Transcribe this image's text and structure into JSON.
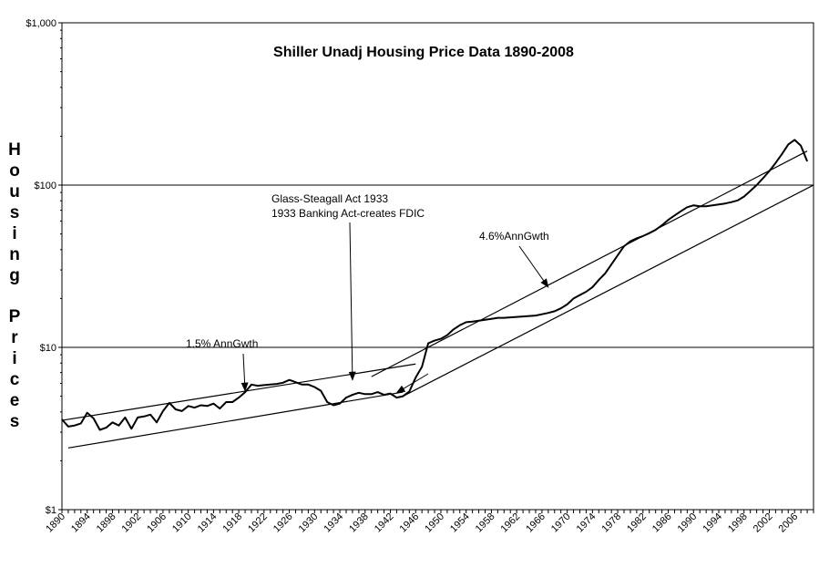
{
  "chart_data": {
    "type": "line",
    "title": "Shiller Unadj Housing Price Data 1890-2008",
    "ylabel": "Housing Prices",
    "xlabel": "",
    "yscale": "log",
    "ylim": [
      1,
      1000
    ],
    "xlim": [
      1890,
      2009
    ],
    "grid": "major horizontal at $10 and $100",
    "legend": "none",
    "y_ticks": [
      {
        "value": 1,
        "label": "$1"
      },
      {
        "value": 10,
        "label": "$10"
      },
      {
        "value": 100,
        "label": "$100"
      },
      {
        "value": 1000,
        "label": "$1,000"
      }
    ],
    "x_ticks": [
      {
        "value": 1890,
        "label": "1890"
      },
      {
        "value": 1894,
        "label": "1894"
      },
      {
        "value": 1898,
        "label": "1898"
      },
      {
        "value": 1902,
        "label": "1902"
      },
      {
        "value": 1906,
        "label": "1906"
      },
      {
        "value": 1910,
        "label": "1910"
      },
      {
        "value": 1914,
        "label": "1914"
      },
      {
        "value": 1918,
        "label": "1918"
      },
      {
        "value": 1922,
        "label": "1922"
      },
      {
        "value": 1926,
        "label": "1926"
      },
      {
        "value": 1930,
        "label": "1930"
      },
      {
        "value": 1934,
        "label": "1934"
      },
      {
        "value": 1938,
        "label": "1938"
      },
      {
        "value": 1942,
        "label": "1942"
      },
      {
        "value": 1946,
        "label": "1946"
      },
      {
        "value": 1950,
        "label": "1950"
      },
      {
        "value": 1954,
        "label": "1954"
      },
      {
        "value": 1958,
        "label": "1958"
      },
      {
        "value": 1962,
        "label": "1962"
      },
      {
        "value": 1966,
        "label": "1966"
      },
      {
        "value": 1970,
        "label": "1970"
      },
      {
        "value": 1974,
        "label": "1974"
      },
      {
        "value": 1978,
        "label": "1978"
      },
      {
        "value": 1982,
        "label": "1982"
      },
      {
        "value": 1986,
        "label": "1986"
      },
      {
        "value": 1990,
        "label": "1990"
      },
      {
        "value": 1994,
        "label": "1994"
      },
      {
        "value": 1998,
        "label": "1998"
      },
      {
        "value": 2002,
        "label": "2002"
      },
      {
        "value": 2006,
        "label": "2006"
      }
    ],
    "series": [
      {
        "x": [
          1890,
          1891,
          1892,
          1893,
          1894,
          1895,
          1896,
          1897,
          1898,
          1899,
          1900,
          1901,
          1902,
          1903,
          1904,
          1905,
          1906,
          1907,
          1908,
          1909,
          1910,
          1911,
          1912,
          1913,
          1914,
          1915,
          1916,
          1917,
          1918,
          1919,
          1920,
          1921,
          1922,
          1923,
          1924,
          1925,
          1926,
          1927,
          1928,
          1929,
          1930,
          1931,
          1932,
          1933,
          1934,
          1935,
          1936,
          1937,
          1938,
          1939,
          1940,
          1941,
          1942,
          1943,
          1944,
          1945,
          1946,
          1947,
          1948,
          1949,
          1950,
          1951,
          1952,
          1953,
          1954,
          1955,
          1956,
          1957,
          1958,
          1959,
          1960,
          1961,
          1962,
          1963,
          1964,
          1965,
          1966,
          1967,
          1968,
          1969,
          1970,
          1971,
          1972,
          1973,
          1974,
          1975,
          1976,
          1977,
          1978,
          1979,
          1980,
          1981,
          1982,
          1983,
          1984,
          1985,
          1986,
          1987,
          1988,
          1989,
          1990,
          1991,
          1992,
          1993,
          1994,
          1995,
          1996,
          1997,
          1998,
          1999,
          2000,
          2001,
          2002,
          2003,
          2004,
          2005,
          2006,
          2007,
          2008
        ],
        "y": [
          3.6,
          3.25,
          3.3,
          3.4,
          3.95,
          3.65,
          3.1,
          3.2,
          3.45,
          3.3,
          3.7,
          3.15,
          3.7,
          3.75,
          3.85,
          3.45,
          4.05,
          4.55,
          4.15,
          4.05,
          4.35,
          4.25,
          4.4,
          4.35,
          4.5,
          4.2,
          4.6,
          4.6,
          4.9,
          5.3,
          5.9,
          5.8,
          5.85,
          5.9,
          5.95,
          6.05,
          6.3,
          6.1,
          5.9,
          5.9,
          5.7,
          5.4,
          4.6,
          4.4,
          4.5,
          4.9,
          5.1,
          5.25,
          5.15,
          5.15,
          5.3,
          5.1,
          5.2,
          4.9,
          5.0,
          5.35,
          6.5,
          7.6,
          10.6,
          11.0,
          11.3,
          11.9,
          12.9,
          13.7,
          14.3,
          14.4,
          14.6,
          14.8,
          15.0,
          15.2,
          15.2,
          15.3,
          15.4,
          15.5,
          15.6,
          15.7,
          16.0,
          16.3,
          16.7,
          17.4,
          18.4,
          20.0,
          21.0,
          22.0,
          23.5,
          26.0,
          28.5,
          32.5,
          37.0,
          42.0,
          45.0,
          47.0,
          48.5,
          50.5,
          53.0,
          56.5,
          61.0,
          65.0,
          69.0,
          73.0,
          75.0,
          74.0,
          74.0,
          75.0,
          76.0,
          77.0,
          78.5,
          80.5,
          85.0,
          92.0,
          100.0,
          110.0,
          122.0,
          137.0,
          155.0,
          178.0,
          190.0,
          175.0,
          140.0
        ]
      }
    ],
    "trend_lines": [
      {
        "label": "1.5% AnnGwth",
        "x": [
          1890,
          1946
        ],
        "y": [
          3.55,
          7.9
        ]
      },
      {
        "label": "",
        "x": [
          1891,
          1944
        ],
        "y": [
          2.4,
          5.3
        ]
      },
      {
        "label": "4.6%AnnGwth",
        "x": [
          1939,
          2008
        ],
        "y": [
          6.6,
          162
        ]
      },
      {
        "label": "",
        "x": [
          1944,
          2009
        ],
        "y": [
          5.0,
          100
        ]
      }
    ],
    "annotations": [
      {
        "lines": [
          "Glass-Steagall Act 1933",
          "1933 Banking Act-creates FDIC"
        ],
        "arrow_to": {
          "x": 1936,
          "y": 6.3
        }
      },
      {
        "lines": [
          "4.6%AnnGwth"
        ],
        "arrow_to": {
          "x": 1967,
          "y": 23.5
        }
      },
      {
        "lines": [
          "1.5% AnnGwth"
        ],
        "arrow_to": {
          "x": 1919,
          "y": 5.4
        }
      },
      {
        "lines": [],
        "arrow_to": {
          "x": 1943,
          "y": 5.25
        }
      }
    ]
  }
}
